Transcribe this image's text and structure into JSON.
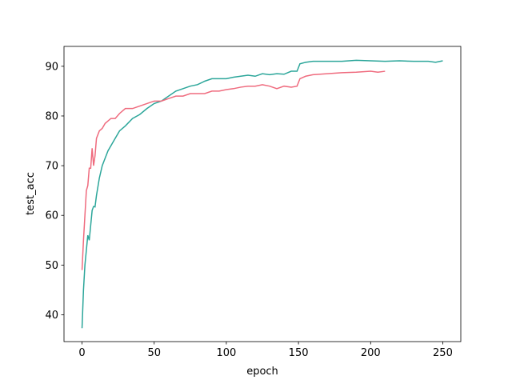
{
  "chart_data": {
    "type": "line",
    "xlabel": "epoch",
    "ylabel": "test_acc",
    "xlim": [
      -12.5,
      262.5
    ],
    "ylim": [
      34.6,
      94.0
    ],
    "xticks": [
      0,
      50,
      100,
      150,
      200,
      250
    ],
    "yticks": [
      40,
      50,
      60,
      70,
      80,
      90
    ],
    "series": [
      {
        "color": "#2ca69a",
        "x": [
          0,
          1,
          2,
          3,
          4,
          5,
          6,
          7,
          8,
          9,
          10,
          12,
          14,
          16,
          18,
          20,
          23,
          26,
          30,
          35,
          40,
          45,
          50,
          55,
          60,
          65,
          70,
          75,
          80,
          85,
          90,
          95,
          100,
          105,
          110,
          115,
          120,
          125,
          130,
          135,
          140,
          145,
          149,
          151,
          155,
          160,
          170,
          180,
          190,
          200,
          210,
          220,
          230,
          240,
          245,
          250
        ],
        "values": [
          37.3,
          45,
          50,
          53,
          56,
          55,
          58,
          61,
          61.8,
          61.7,
          64,
          67.5,
          70,
          71.5,
          73,
          74,
          75.5,
          77,
          78,
          79.5,
          80.3,
          81.5,
          82.5,
          83,
          84,
          85,
          85.5,
          86,
          86.3,
          87,
          87.5,
          87.5,
          87.5,
          87.8,
          88,
          88.2,
          88,
          88.5,
          88.3,
          88.5,
          88.4,
          89,
          89,
          90.5,
          90.8,
          91,
          91,
          91,
          91.2,
          91.1,
          91,
          91.1,
          91,
          91,
          90.8,
          91.1
        ]
      },
      {
        "color": "#ef6b7e",
        "x": [
          0,
          1,
          2,
          3,
          4,
          5,
          6,
          7,
          8,
          9,
          10,
          12,
          14,
          16,
          18,
          20,
          23,
          26,
          30,
          35,
          40,
          45,
          50,
          55,
          60,
          65,
          70,
          75,
          80,
          85,
          90,
          95,
          100,
          105,
          110,
          115,
          120,
          125,
          130,
          135,
          140,
          145,
          149,
          151,
          155,
          160,
          170,
          180,
          190,
          200,
          205,
          210
        ],
        "values": [
          49,
          55,
          60,
          65,
          66,
          69.5,
          69.5,
          73.5,
          70,
          72,
          75.5,
          77,
          77.5,
          78.5,
          79,
          79.5,
          79.5,
          80.5,
          81.5,
          81.5,
          82,
          82.5,
          83,
          83,
          83.5,
          84,
          84,
          84.5,
          84.5,
          84.5,
          85,
          85,
          85.3,
          85.5,
          85.8,
          86,
          86,
          86.3,
          86,
          85.5,
          86,
          85.8,
          86,
          87.5,
          88,
          88.3,
          88.5,
          88.7,
          88.8,
          89,
          88.8,
          89
        ]
      }
    ]
  }
}
